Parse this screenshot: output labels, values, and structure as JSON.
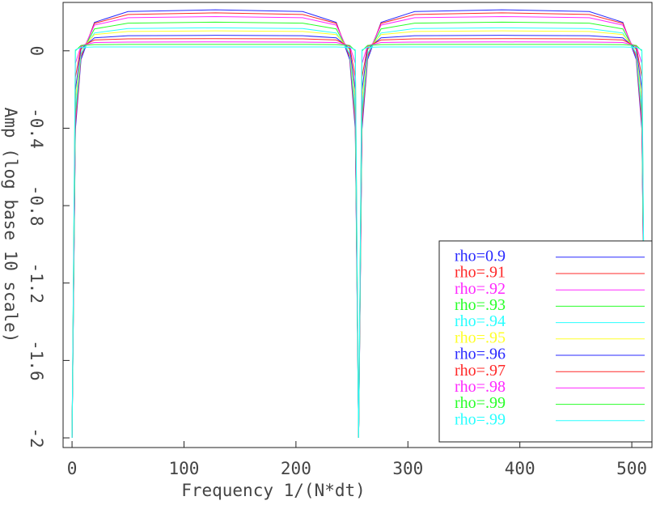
{
  "chart_data": {
    "type": "line",
    "xlabel": "Frequency 1/(N*dt)",
    "ylabel": "Amp (log base 10 scale)",
    "x": [
      0,
      3,
      8,
      20,
      50,
      128,
      206,
      236,
      248,
      253,
      256,
      259,
      264,
      276,
      306,
      384,
      462,
      492,
      504,
      509,
      512
    ],
    "xlim": [
      -8,
      518
    ],
    "xticks": [
      0,
      100,
      200,
      300,
      400,
      500
    ],
    "ylim": [
      -2.05,
      0.25
    ],
    "yticks": [
      0,
      -0.4,
      -0.8,
      -1.2,
      -1.6,
      -2
    ],
    "grid": false,
    "legend": "lower right",
    "series": [
      {
        "name": "rho=0.9",
        "color": "#2828ff",
        "values": [
          -2,
          -0.406,
          -0.045,
          0.147,
          0.203,
          0.212,
          0.203,
          0.147,
          -0.045,
          -0.406,
          -2,
          -0.406,
          -0.045,
          0.147,
          0.203,
          0.212,
          0.203,
          0.147,
          -0.045,
          -0.406,
          -2
        ]
      },
      {
        "name": "rho=.91",
        "color": "#ff2828",
        "values": [
          -2,
          -0.38,
          -0.031,
          0.142,
          0.188,
          0.196,
          0.188,
          0.142,
          -0.031,
          -0.38,
          -2,
          -0.38,
          -0.031,
          0.142,
          0.188,
          0.196,
          0.188,
          0.142,
          -0.031,
          -0.38,
          -2
        ]
      },
      {
        "name": "rho=.92",
        "color": "#ff28ff",
        "values": [
          -2,
          -0.353,
          -0.019,
          0.133,
          0.171,
          0.177,
          0.171,
          0.133,
          -0.019,
          -0.353,
          -2,
          -0.353,
          -0.019,
          0.133,
          0.171,
          0.177,
          0.171,
          0.133,
          -0.019,
          -0.353,
          -2
        ]
      },
      {
        "name": "rho=.93",
        "color": "#28ff28",
        "values": [
          -2,
          -0.33,
          -0.016,
          0.113,
          0.143,
          0.148,
          0.143,
          0.113,
          -0.016,
          -0.33,
          -2,
          -0.33,
          -0.016,
          0.113,
          0.143,
          0.148,
          0.143,
          0.113,
          -0.016,
          -0.33,
          -2
        ]
      },
      {
        "name": "rho=.94",
        "color": "#28ffff",
        "values": [
          -2,
          -0.302,
          -0.013,
          0.092,
          0.115,
          0.119,
          0.115,
          0.092,
          -0.013,
          -0.302,
          -2,
          -0.302,
          -0.013,
          0.092,
          0.115,
          0.119,
          0.115,
          0.092,
          -0.013,
          -0.302,
          -2
        ]
      },
      {
        "name": "rho=.95",
        "color": "#ffff28",
        "values": [
          -2,
          -0.252,
          0.004,
          0.084,
          0.1,
          0.103,
          0.1,
          0.084,
          0.004,
          -0.252,
          -2,
          -0.252,
          0.004,
          0.084,
          0.1,
          0.103,
          0.1,
          0.084,
          0.004,
          -0.252,
          -2
        ]
      },
      {
        "name": "rho=.96",
        "color": "#2828ff",
        "values": [
          -2,
          -0.202,
          0.011,
          0.067,
          0.078,
          0.08,
          0.078,
          0.067,
          0.011,
          -0.202,
          -2,
          -0.202,
          0.011,
          0.067,
          0.078,
          0.08,
          0.078,
          0.067,
          0.011,
          -0.202,
          -2
        ]
      },
      {
        "name": "rho=.97",
        "color": "#ff2828",
        "values": [
          -2,
          -0.136,
          0.022,
          0.056,
          0.062,
          0.063,
          0.062,
          0.056,
          0.022,
          -0.136,
          -2,
          -0.136,
          0.022,
          0.056,
          0.062,
          0.063,
          0.062,
          0.056,
          0.022,
          -0.136,
          -2
        ]
      },
      {
        "name": "rho=.98",
        "color": "#ff28ff",
        "values": [
          -2,
          -0.065,
          0.027,
          0.043,
          0.045,
          0.046,
          0.045,
          0.043,
          0.027,
          -0.065,
          -2,
          -0.065,
          0.027,
          0.043,
          0.045,
          0.046,
          0.045,
          0.043,
          0.027,
          -0.065,
          -2
        ]
      },
      {
        "name": "rho=.99",
        "color": "#28ff28",
        "values": [
          -2,
          0.0,
          0.028,
          0.032,
          0.033,
          0.033,
          0.033,
          0.032,
          0.028,
          0.0,
          -2,
          0.0,
          0.028,
          0.032,
          0.033,
          0.033,
          0.033,
          0.032,
          0.028,
          0.0,
          -2
        ]
      },
      {
        "name": "rho=.99",
        "color": "#28ffff",
        "values": [
          -2,
          0.005,
          0.018,
          0.02,
          0.02,
          0.02,
          0.02,
          0.02,
          0.018,
          0.005,
          -2,
          0.005,
          0.018,
          0.02,
          0.02,
          0.02,
          0.02,
          0.02,
          0.018,
          0.005,
          -2
        ]
      }
    ]
  }
}
